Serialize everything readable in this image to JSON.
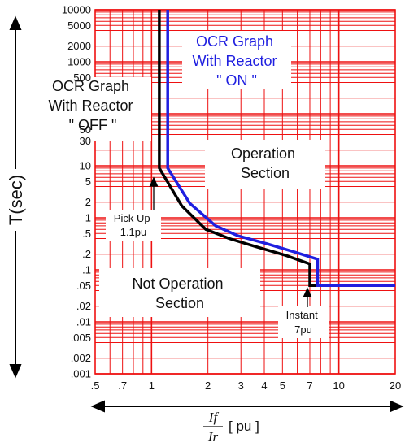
{
  "chart_data": {
    "type": "line",
    "x_scale": "log",
    "y_scale": "log",
    "xlim": [
      0.5,
      20
    ],
    "ylim": [
      0.001,
      10000
    ],
    "grid": true,
    "xlabel": "T(sec)",
    "ylabel_x_numerator": "If",
    "ylabel_x_denominator": "Ir",
    "x_unit": "[ pu ]",
    "x_tick_labels": [
      {
        "value": 0.5,
        "label": ".5"
      },
      {
        "value": 0.7,
        "label": ".7"
      },
      {
        "value": 1,
        "label": "1"
      },
      {
        "value": 2,
        "label": "2"
      },
      {
        "value": 3,
        "label": "3"
      },
      {
        "value": 4,
        "label": "4"
      },
      {
        "value": 5,
        "label": "5"
      },
      {
        "value": 7,
        "label": "7"
      },
      {
        "value": 10,
        "label": "10"
      },
      {
        "value": 20,
        "label": "20"
      }
    ],
    "y_tick_labels": [
      {
        "value": 10000,
        "label": "10000"
      },
      {
        "value": 5000,
        "label": "5000"
      },
      {
        "value": 2000,
        "label": "2000"
      },
      {
        "value": 1000,
        "label": "1000"
      },
      {
        "value": 500,
        "label": "500"
      },
      {
        "value": 50,
        "label": "50"
      },
      {
        "value": 30,
        "label": "30"
      },
      {
        "value": 10,
        "label": "10"
      },
      {
        "value": 5,
        "label": "5"
      },
      {
        "value": 2,
        "label": "2"
      },
      {
        "value": 1,
        "label": "1"
      },
      {
        "value": 0.5,
        "label": ".5"
      },
      {
        "value": 0.2,
        "label": ".2"
      },
      {
        "value": 0.1,
        "label": ".1"
      },
      {
        "value": 0.05,
        "label": ".05"
      },
      {
        "value": 0.02,
        "label": ".02"
      },
      {
        "value": 0.01,
        "label": ".01"
      },
      {
        "value": 0.005,
        "label": ".005"
      },
      {
        "value": 0.002,
        "label": ".002"
      },
      {
        "value": 0.001,
        "label": ".001"
      }
    ],
    "series": [
      {
        "name": "OCR Graph With Reactor \" OFF \"",
        "color": "#000000",
        "points": [
          [
            1.1,
            10000
          ],
          [
            1.1,
            9
          ],
          [
            1.45,
            1.7
          ],
          [
            1.95,
            0.6
          ],
          [
            2.6,
            0.4
          ],
          [
            3.6,
            0.28
          ],
          [
            5.2,
            0.19
          ],
          [
            7.0,
            0.13
          ],
          [
            7.0,
            0.05
          ],
          [
            20,
            0.05
          ]
        ]
      },
      {
        "name": "OCR Graph With Reactor \" ON \"",
        "color": "#1f1fe0",
        "points": [
          [
            1.22,
            10000
          ],
          [
            1.22,
            9
          ],
          [
            1.6,
            1.9
          ],
          [
            2.2,
            0.7
          ],
          [
            2.9,
            0.45
          ],
          [
            4.1,
            0.32
          ],
          [
            5.8,
            0.22
          ],
          [
            7.7,
            0.16
          ],
          [
            7.7,
            0.05
          ],
          [
            20,
            0.05
          ]
        ]
      }
    ],
    "annotations": {
      "off_label": [
        "OCR Graph",
        "With Reactor",
        "\" OFF \""
      ],
      "on_label": [
        "OCR Graph",
        "With Reactor",
        "\" ON \""
      ],
      "operation": [
        "Operation",
        "Section"
      ],
      "not_operation": [
        "Not Operation",
        "Section"
      ],
      "pickup": [
        "Pick Up",
        "1.1pu"
      ],
      "instant": [
        "Instant",
        "7pu"
      ]
    },
    "colors": {
      "grid": "#ee1111",
      "off_curve": "#000000",
      "on_curve": "#1f1fe0",
      "on_label": "#1f1fe0"
    }
  }
}
